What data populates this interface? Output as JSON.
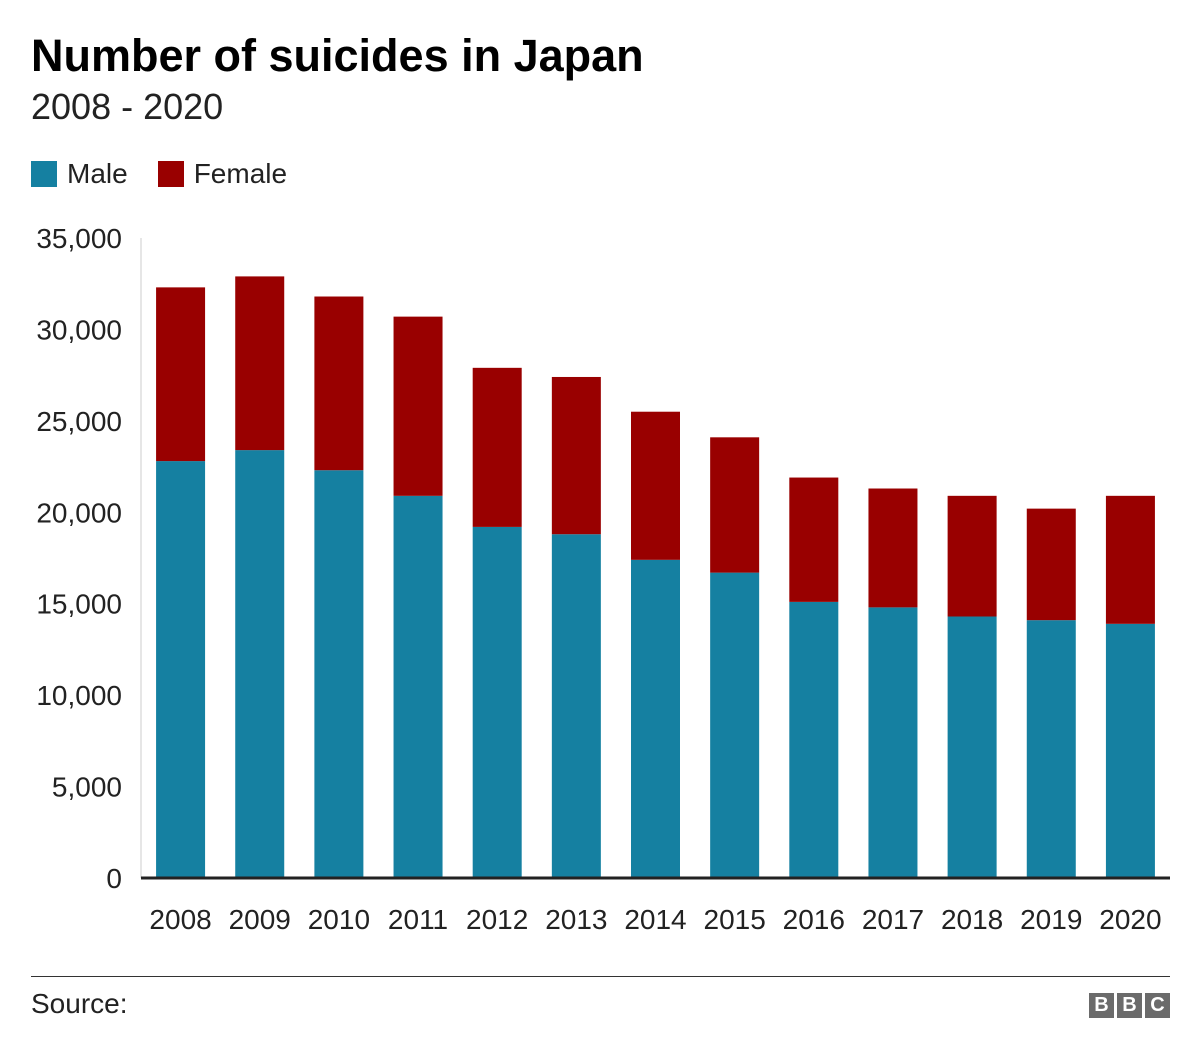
{
  "header": {
    "title": "Number of suicides in Japan",
    "subtitle": "2008 - 2020"
  },
  "legend": [
    {
      "label": "Male",
      "color": "#1580a1"
    },
    {
      "label": "Female",
      "color": "#990000"
    }
  ],
  "footer": {
    "source": "Source:",
    "logo_letters": [
      "B",
      "B",
      "C"
    ]
  },
  "chart_data": {
    "type": "bar",
    "stacked": true,
    "title": "Number of suicides in Japan",
    "subtitle": "2008 - 2020",
    "xlabel": "",
    "ylabel": "",
    "ylim": [
      0,
      35000
    ],
    "yticks": [
      0,
      5000,
      10000,
      15000,
      20000,
      25000,
      30000,
      35000
    ],
    "ytick_labels": [
      "0",
      "5,000",
      "10,000",
      "15,000",
      "20,000",
      "25,000",
      "30,000",
      "35,000"
    ],
    "grid": false,
    "legend_position": "top-left",
    "categories": [
      "2008",
      "2009",
      "2010",
      "2011",
      "2012",
      "2013",
      "2014",
      "2015",
      "2016",
      "2017",
      "2018",
      "2019",
      "2020"
    ],
    "series": [
      {
        "name": "Male",
        "color": "#1580a1",
        "values": [
          22800,
          23400,
          22300,
          20900,
          19200,
          18800,
          17400,
          16700,
          15100,
          14800,
          14300,
          14100,
          13900
        ]
      },
      {
        "name": "Female",
        "color": "#990000",
        "values": [
          9500,
          9500,
          9500,
          9800,
          8700,
          8600,
          8100,
          7400,
          6800,
          6500,
          6600,
          6100,
          7000
        ]
      }
    ]
  }
}
